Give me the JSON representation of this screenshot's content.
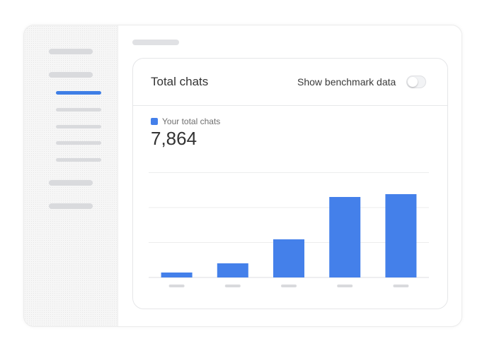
{
  "card": {
    "title": "Total chats",
    "benchmark_label": "Show benchmark data",
    "benchmark_enabled": false,
    "legend_label": "Your total chats",
    "total_value": "7,864"
  },
  "colors": {
    "accent": "#4480ea",
    "sidebar_active": "#3f7fe6",
    "placeholder": "#d9dadd"
  },
  "chart_data": {
    "type": "bar",
    "categories": [
      "",
      "",
      "",
      "",
      ""
    ],
    "values": [
      7,
      20,
      54,
      114,
      118
    ],
    "ylim": [
      0,
      150
    ],
    "grid": true,
    "legend": "top-left",
    "series": [
      {
        "name": "Your total chats",
        "values": [
          7,
          20,
          54,
          114,
          118
        ]
      }
    ]
  }
}
